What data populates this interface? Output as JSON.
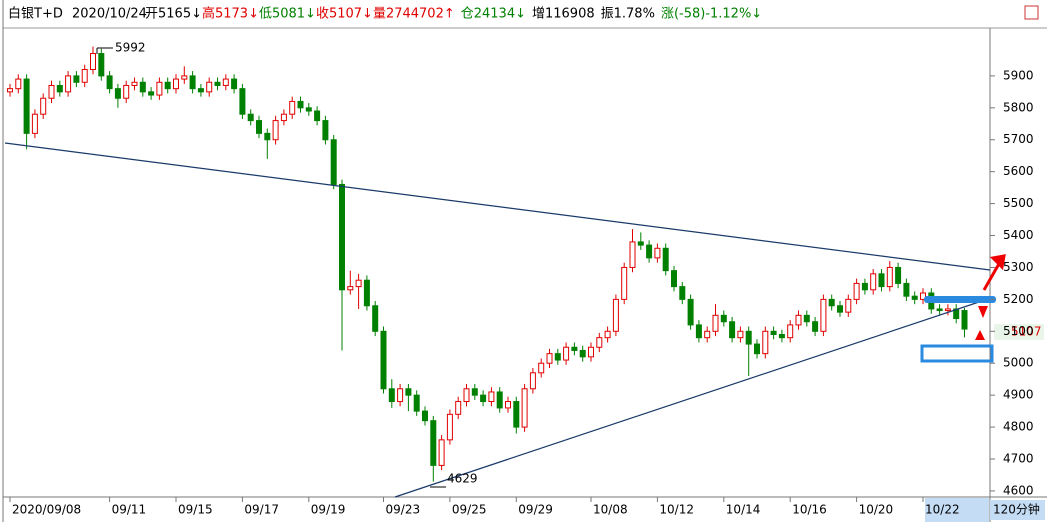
{
  "header": {
    "symbol": "白银T+D",
    "date": "2020/10/24",
    "fields": [
      "开5165↓",
      "高5173↓",
      "低5081↓",
      "收5107↓",
      "量2744702↑",
      "仓24134↓",
      "增116908",
      "振1.78%",
      "涨(-58)-1.12%↓"
    ],
    "period": "120分钟"
  },
  "chart_data": {
    "type": "candlestick",
    "up_color": "#e00000",
    "down_color": "#008000",
    "ylim": [
      4581,
      6050
    ],
    "yticks": [
      4600,
      4700,
      4800,
      4900,
      5000,
      5100,
      5200,
      5300,
      5400,
      5500,
      5600,
      5700,
      5800,
      5900
    ],
    "categories": [
      "2020/09/08",
      null,
      null,
      null,
      null,
      null,
      null,
      null,
      null,
      null,
      null,
      null,
      "09/11",
      null,
      null,
      null,
      null,
      null,
      null,
      null,
      "09/15",
      null,
      null,
      null,
      null,
      null,
      null,
      null,
      "09/17",
      null,
      null,
      null,
      null,
      null,
      null,
      null,
      "09/19",
      null,
      null,
      null,
      null,
      null,
      null,
      null,
      null,
      "09/23",
      null,
      null,
      null,
      null,
      null,
      null,
      null,
      "09/25",
      null,
      null,
      null,
      null,
      null,
      null,
      null,
      "09/29",
      null,
      null,
      null,
      null,
      null,
      null,
      null,
      null,
      "10/08",
      null,
      null,
      null,
      null,
      null,
      null,
      null,
      "10/12",
      null,
      null,
      null,
      null,
      null,
      null,
      null,
      "10/14",
      null,
      null,
      null,
      null,
      null,
      null,
      null,
      "10/16",
      null,
      null,
      null,
      null,
      null,
      null,
      null,
      "10/20",
      null,
      null,
      null,
      null,
      null,
      null,
      null,
      "10/22",
      null,
      null,
      null,
      null,
      null
    ],
    "open": [
      5850,
      5860,
      5890,
      5720,
      5780,
      5830,
      5870,
      5850,
      5900,
      5880,
      5920,
      5970,
      5900,
      5860,
      5830,
      5870,
      5880,
      5850,
      5840,
      5880,
      5860,
      5890,
      5900,
      5860,
      5850,
      5880,
      5870,
      5890,
      5860,
      5780,
      5760,
      5720,
      5700,
      5760,
      5780,
      5820,
      5800,
      5790,
      5760,
      5700,
      5560,
      5230,
      5240,
      5260,
      5180,
      5100,
      4920,
      4880,
      4920,
      4900,
      4850,
      4820,
      4680,
      4760,
      4840,
      4880,
      4920,
      4900,
      4880,
      4910,
      4860,
      4880,
      4800,
      4920,
      4970,
      5000,
      5030,
      5010,
      5050,
      5040,
      5020,
      5050,
      5080,
      5100,
      5200,
      5300,
      5380,
      5370,
      5330,
      5360,
      5290,
      5240,
      5200,
      5120,
      5080,
      5100,
      5150,
      5130,
      5080,
      5100,
      5060,
      5030,
      5100,
      5090,
      5080,
      5120,
      5150,
      5130,
      5100,
      5200,
      5180,
      5160,
      5200,
      5250,
      5230,
      5280,
      5240,
      5300,
      5250,
      5210,
      5200,
      5220,
      5170,
      5165,
      5170,
      5165
    ],
    "high": [
      5875,
      5905,
      5905,
      5795,
      5845,
      5885,
      5885,
      5915,
      5915,
      5935,
      5992,
      5985,
      5915,
      5875,
      5885,
      5895,
      5895,
      5865,
      5895,
      5895,
      5905,
      5930,
      5915,
      5875,
      5895,
      5895,
      5905,
      5905,
      5875,
      5795,
      5775,
      5735,
      5775,
      5795,
      5835,
      5835,
      5815,
      5805,
      5775,
      5715,
      5575,
      5290,
      5280,
      5275,
      5195,
      5115,
      4950,
      4935,
      4935,
      4915,
      4865,
      4835,
      4775,
      4855,
      4895,
      4935,
      4935,
      4915,
      4925,
      4925,
      4895,
      4895,
      4935,
      4985,
      5015,
      5045,
      5045,
      5065,
      5065,
      5055,
      5065,
      5095,
      5115,
      5215,
      5315,
      5420,
      5410,
      5385,
      5375,
      5375,
      5305,
      5255,
      5215,
      5135,
      5115,
      5185,
      5165,
      5145,
      5115,
      5115,
      5075,
      5115,
      5115,
      5105,
      5135,
      5165,
      5165,
      5145,
      5215,
      5215,
      5195,
      5215,
      5265,
      5265,
      5295,
      5295,
      5320,
      5315,
      5265,
      5225,
      5235,
      5235,
      5185,
      5185,
      5185,
      5173
    ],
    "low": [
      5835,
      5845,
      5670,
      5705,
      5765,
      5815,
      5835,
      5835,
      5865,
      5865,
      5905,
      5885,
      5845,
      5800,
      5815,
      5855,
      5835,
      5825,
      5825,
      5845,
      5845,
      5875,
      5845,
      5835,
      5835,
      5855,
      5855,
      5845,
      5765,
      5745,
      5705,
      5640,
      5685,
      5745,
      5765,
      5785,
      5775,
      5745,
      5685,
      5545,
      5040,
      5215,
      5170,
      5165,
      5085,
      4905,
      4860,
      4865,
      4850,
      4835,
      4805,
      4629,
      4665,
      4745,
      4825,
      4865,
      4885,
      4865,
      4865,
      4845,
      4845,
      4780,
      4785,
      4905,
      4955,
      4985,
      4995,
      4995,
      5025,
      5005,
      5005,
      5035,
      5065,
      5085,
      5185,
      5285,
      5355,
      5315,
      5315,
      5275,
      5225,
      5185,
      5105,
      5065,
      5065,
      5085,
      5115,
      5065,
      5065,
      4960,
      5015,
      5015,
      5075,
      5065,
      5065,
      5105,
      5115,
      5085,
      5085,
      5165,
      5145,
      5145,
      5185,
      5215,
      5215,
      5225,
      5225,
      5235,
      5195,
      5185,
      5185,
      5155,
      5150,
      5150,
      5125,
      5081
    ],
    "close": [
      5860,
      5890,
      5720,
      5780,
      5830,
      5870,
      5850,
      5900,
      5880,
      5920,
      5970,
      5900,
      5860,
      5830,
      5870,
      5880,
      5850,
      5840,
      5880,
      5860,
      5890,
      5900,
      5860,
      5850,
      5880,
      5870,
      5890,
      5860,
      5780,
      5760,
      5720,
      5700,
      5760,
      5780,
      5820,
      5800,
      5790,
      5760,
      5700,
      5560,
      5230,
      5240,
      5260,
      5180,
      5100,
      4920,
      4880,
      4920,
      4900,
      4850,
      4820,
      4680,
      4760,
      4840,
      4880,
      4920,
      4900,
      4880,
      4910,
      4860,
      4880,
      4800,
      4920,
      4970,
      5000,
      5030,
      5010,
      5050,
      5040,
      5020,
      5050,
      5080,
      5100,
      5200,
      5300,
      5380,
      5370,
      5330,
      5360,
      5290,
      5240,
      5200,
      5120,
      5080,
      5100,
      5150,
      5130,
      5080,
      5100,
      5060,
      5030,
      5100,
      5090,
      5080,
      5120,
      5150,
      5130,
      5100,
      5200,
      5180,
      5160,
      5200,
      5250,
      5230,
      5280,
      5240,
      5300,
      5250,
      5210,
      5200,
      5220,
      5170,
      5165,
      5170,
      5140,
      5107
    ]
  }
}
